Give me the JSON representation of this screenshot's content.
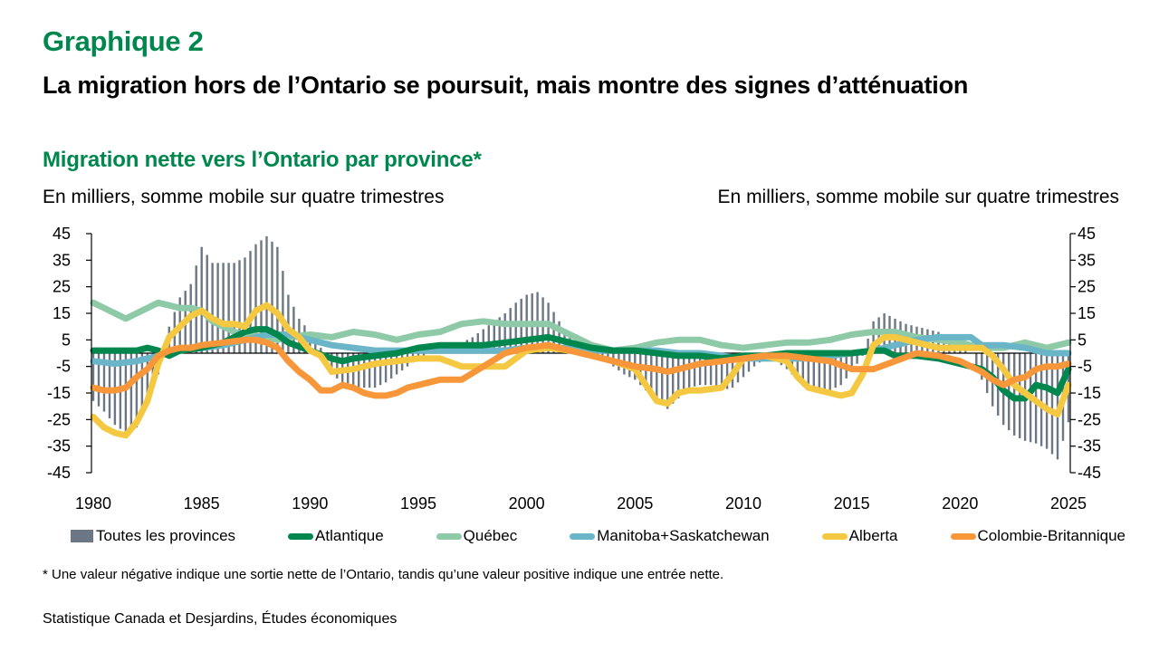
{
  "header": {
    "chart_number": "Graphique 2",
    "title": "La migration hors de l’Ontario se poursuit, mais montre des signes d’atténuation",
    "subtitle": "Migration nette vers l’Ontario par province*",
    "unit_left": "En milliers, somme mobile sur quatre trimestres",
    "unit_right": "En milliers, somme mobile sur quatre trimestres"
  },
  "footnote": "* Une valeur négative indique une sortie nette de l’Ontario, tandis qu’une valeur positive indique une entrée nette.",
  "source": "Statistique Canada et Desjardins, Études économiques",
  "colors": {
    "title_green": "#00874e",
    "bars": "#6b7785",
    "atlantique": "#00874e",
    "quebec": "#8fcaa8",
    "manitoba_sask": "#6bb5c8",
    "alberta": "#f5c842",
    "cb": "#f7973a"
  },
  "chart_data": {
    "type": "bar+line",
    "title": "Migration nette vers l’Ontario par province*",
    "xlabel": "",
    "ylabel": "En milliers, somme mobile sur quatre trimestres",
    "y2label": "En milliers, somme mobile sur quatre trimestres",
    "xlim": [
      1980,
      2025
    ],
    "ylim": [
      -45,
      45
    ],
    "yticks": [
      45,
      35,
      25,
      15,
      5,
      -5,
      -15,
      -25,
      -35,
      -45
    ],
    "xticks": [
      1980,
      1985,
      1990,
      1995,
      2000,
      2005,
      2010,
      2015,
      2020,
      2025
    ],
    "grid": false,
    "legend_position": "bottom",
    "bars": {
      "name": "Toutes les provinces",
      "x": [
        1980,
        1980.5,
        1981,
        1981.5,
        1982,
        1982.5,
        1983,
        1983.5,
        1984,
        1984.5,
        1985,
        1985.5,
        1986,
        1986.5,
        1987,
        1987.5,
        1988,
        1988.5,
        1989,
        1989.5,
        1990,
        1990.5,
        1991,
        1991.5,
        1992,
        1992.5,
        1993,
        1993.5,
        1994,
        1994.5,
        1995,
        1995.5,
        1996,
        1996.5,
        1997,
        1997.5,
        1998,
        1998.5,
        1999,
        1999.5,
        2000,
        2000.5,
        2001,
        2001.5,
        2002,
        2002.5,
        2003,
        2003.5,
        2004,
        2004.5,
        2005,
        2005.5,
        2006,
        2006.5,
        2007,
        2007.5,
        2008,
        2008.5,
        2009,
        2009.5,
        2010,
        2010.5,
        2011,
        2011.5,
        2012,
        2012.5,
        2013,
        2013.5,
        2014,
        2014.5,
        2015,
        2015.5,
        2016,
        2016.5,
        2017,
        2017.5,
        2018,
        2018.5,
        2019,
        2019.5,
        2020,
        2020.5,
        2021,
        2021.5,
        2022,
        2022.5,
        2023,
        2023.5,
        2024,
        2024.5,
        2025
      ],
      "values": [
        -18,
        -22,
        -27,
        -30,
        -28,
        -19,
        -8,
        10,
        21,
        26,
        40,
        34,
        34,
        34,
        36,
        41,
        44,
        40,
        22,
        13,
        8,
        2,
        -7,
        -12,
        -14,
        -13,
        -13,
        -11,
        -8,
        -5,
        -2,
        0,
        2,
        3,
        4,
        6,
        9,
        12,
        15,
        19,
        22,
        23,
        19,
        12,
        6,
        3,
        1,
        -2,
        -5,
        -8,
        -10,
        -14,
        -18,
        -21,
        -17,
        -13,
        -12,
        -12,
        -14,
        -13,
        -9,
        -5,
        -2,
        -3,
        -6,
        -10,
        -12,
        -13,
        -14,
        -12,
        -7,
        -1,
        12,
        15,
        13,
        11,
        10,
        9,
        8,
        6,
        4,
        0,
        -10,
        -20,
        -27,
        -31,
        -33,
        -34,
        -36,
        -40,
        -26
      ],
      "color": "#6b7785"
    },
    "series": [
      {
        "name": "Atlantique",
        "color": "#00874e",
        "x": [
          1980,
          1981,
          1982,
          1982.5,
          1983,
          1983.5,
          1984,
          1985,
          1986,
          1986.5,
          1987,
          1987.5,
          1988,
          1988.5,
          1989,
          1990,
          1991,
          1991.5,
          1992,
          1993,
          1994,
          1995,
          1996,
          1997,
          1998,
          1999,
          2000,
          2001,
          2002,
          2003,
          2004,
          2005,
          2006,
          2007,
          2008,
          2009,
          2010,
          2011,
          2012,
          2013,
          2014,
          2015,
          2016,
          2016.5,
          2017,
          2018,
          2019,
          2020,
          2021,
          2021.5,
          2022,
          2022.5,
          2023,
          2023.5,
          2024,
          2024.5,
          2025
        ],
        "values": [
          1,
          1,
          1,
          2,
          1,
          -1,
          1,
          2,
          4,
          6,
          8,
          9,
          9,
          7,
          4,
          1,
          -2,
          -3,
          -2,
          -1,
          0,
          2,
          3,
          3,
          3,
          4,
          5,
          6,
          4,
          2,
          1,
          1,
          0,
          -1,
          -1,
          -2,
          -1,
          -1,
          0,
          0,
          0,
          0,
          1,
          1,
          -1,
          -1,
          -2,
          -4,
          -6,
          -9,
          -14,
          -17,
          -17,
          -12,
          -13,
          -15,
          -6
        ]
      },
      {
        "name": "Québec",
        "color": "#8fcaa8",
        "x": [
          1980,
          1980.5,
          1981,
          1981.5,
          1982,
          1982.5,
          1983,
          1983.5,
          1984,
          1984.5,
          1985,
          1985.5,
          1986,
          1986.5,
          1987,
          1988,
          1988.5,
          1989,
          1990,
          1991,
          1992,
          1993,
          1994,
          1995,
          1996,
          1997,
          1998,
          1999,
          2000,
          2001,
          2002,
          2003,
          2004,
          2005,
          2006,
          2007,
          2008,
          2009,
          2010,
          2011,
          2012,
          2013,
          2014,
          2015,
          2016,
          2017,
          2018,
          2019,
          2020,
          2021,
          2022,
          2023,
          2024,
          2025
        ],
        "values": [
          19,
          17,
          15,
          13,
          15,
          17,
          19,
          18,
          17,
          17,
          16,
          12,
          10,
          8,
          7,
          6,
          5,
          6,
          7,
          6,
          8,
          7,
          5,
          7,
          8,
          11,
          12,
          11,
          11,
          11,
          7,
          3,
          1,
          2,
          4,
          5,
          5,
          3,
          2,
          3,
          4,
          4,
          5,
          7,
          8,
          8,
          6,
          5,
          4,
          2,
          2,
          4,
          2,
          4
        ]
      },
      {
        "name": "Manitoba+Saskatchewan",
        "color": "#6bb5c8",
        "x": [
          1980,
          1981,
          1982,
          1983,
          1984,
          1985,
          1986,
          1987,
          1988,
          1989,
          1990,
          1991,
          1992,
          1993,
          1994,
          1995,
          1996,
          1997,
          1998,
          1999,
          2000,
          2001,
          2002,
          2003,
          2004,
          2005,
          2006,
          2007,
          2008,
          2009,
          2010,
          2011,
          2012,
          2013,
          2014,
          2015,
          2016,
          2017,
          2018,
          2019,
          2020,
          2020.5,
          2021,
          2022,
          2023,
          2024,
          2025
        ],
        "values": [
          -3,
          -4,
          -3,
          -1,
          1,
          2,
          3,
          5,
          7,
          7,
          5,
          3,
          2,
          1,
          1,
          1,
          1,
          1,
          1,
          1,
          2,
          2,
          2,
          1,
          1,
          1,
          1,
          0,
          0,
          -1,
          -2,
          -2,
          -2,
          -2,
          -1,
          0,
          1,
          3,
          5,
          6,
          6,
          6,
          3,
          3,
          2,
          0,
          0
        ]
      },
      {
        "name": "Alberta",
        "color": "#f5c842",
        "x": [
          1980,
          1980.5,
          1981,
          1981.5,
          1982,
          1982.5,
          1983,
          1983.5,
          1984,
          1984.5,
          1985,
          1985.5,
          1986,
          1986.5,
          1987,
          1987.5,
          1988,
          1988.5,
          1989,
          1989.5,
          1990,
          1990.5,
          1991,
          1992,
          1993,
          1994,
          1995,
          1996,
          1997,
          1998,
          1999,
          2000,
          2001,
          2002,
          2003,
          2004,
          2005,
          2005.5,
          2006,
          2006.5,
          2007,
          2007.5,
          2008,
          2009,
          2009.5,
          2010,
          2011,
          2012,
          2012.5,
          2013,
          2013.5,
          2014,
          2014.5,
          2015,
          2015.5,
          2016,
          2016.5,
          2017,
          2018,
          2019,
          2020,
          2021,
          2021.5,
          2022,
          2022.5,
          2023,
          2023.5,
          2024,
          2024.5,
          2025
        ],
        "values": [
          -24,
          -28,
          -30,
          -31,
          -26,
          -18,
          -4,
          6,
          10,
          14,
          16,
          13,
          11,
          11,
          10,
          16,
          18,
          15,
          9,
          6,
          1,
          -1,
          -7,
          -6,
          -4,
          -3,
          -2,
          -2,
          -5,
          -5,
          -5,
          1,
          2,
          1,
          -1,
          -3,
          -6,
          -12,
          -18,
          -19,
          -15,
          -14,
          -14,
          -13,
          -8,
          -2,
          -1,
          -3,
          -9,
          -13,
          -14,
          -15,
          -16,
          -15,
          -8,
          3,
          6,
          6,
          4,
          2,
          2,
          2,
          -1,
          -6,
          -12,
          -15,
          -18,
          -21,
          -23,
          -12
        ]
      },
      {
        "name": "Colombie-Britannique",
        "color": "#f7973a",
        "x": [
          1980,
          1980.5,
          1981,
          1981.5,
          1982,
          1982.5,
          1983,
          1983.5,
          1984,
          1984.5,
          1985,
          1986,
          1987,
          1987.5,
          1988,
          1988.5,
          1989,
          1989.5,
          1990,
          1990.5,
          1991,
          1991.5,
          1992,
          1992.5,
          1993,
          1993.5,
          1994,
          1994.5,
          1995,
          1996,
          1997,
          1998,
          1999,
          2000,
          2001,
          2002,
          2003,
          2004,
          2005,
          2006,
          2006.5,
          2007,
          2008,
          2009,
          2010,
          2011,
          2012,
          2013,
          2014,
          2015,
          2016,
          2017,
          2018,
          2019,
          2020,
          2021,
          2021.5,
          2022,
          2022.5,
          2023,
          2023.5,
          2024,
          2024.5,
          2025
        ],
        "values": [
          -13,
          -14,
          -14,
          -13,
          -9,
          -6,
          -1,
          1,
          2,
          2,
          3,
          4,
          5,
          5,
          4,
          2,
          -3,
          -7,
          -10,
          -14,
          -14,
          -12,
          -13,
          -15,
          -16,
          -16,
          -15,
          -13,
          -12,
          -10,
          -10,
          -5,
          0,
          2,
          3,
          1,
          -1,
          -3,
          -5,
          -6,
          -7,
          -6,
          -4,
          -3,
          -2,
          -1,
          -1,
          -2,
          -3,
          -6,
          -6,
          -3,
          0,
          -1,
          -3,
          -7,
          -10,
          -12,
          -10,
          -9,
          -6,
          -5,
          -5,
          -4
        ]
      }
    ]
  },
  "legend": [
    {
      "label": "Toutes les provinces",
      "kind": "bar",
      "color": "#6b7785"
    },
    {
      "label": "Atlantique",
      "kind": "line",
      "color": "#00874e"
    },
    {
      "label": "Québec",
      "kind": "line",
      "color": "#8fcaa8"
    },
    {
      "label": "Manitoba+Saskatchewan",
      "kind": "line",
      "color": "#6bb5c8"
    },
    {
      "label": "Alberta",
      "kind": "line",
      "color": "#f5c842"
    },
    {
      "label": "Colombie-Britannique",
      "kind": "line",
      "color": "#f7973a"
    }
  ]
}
